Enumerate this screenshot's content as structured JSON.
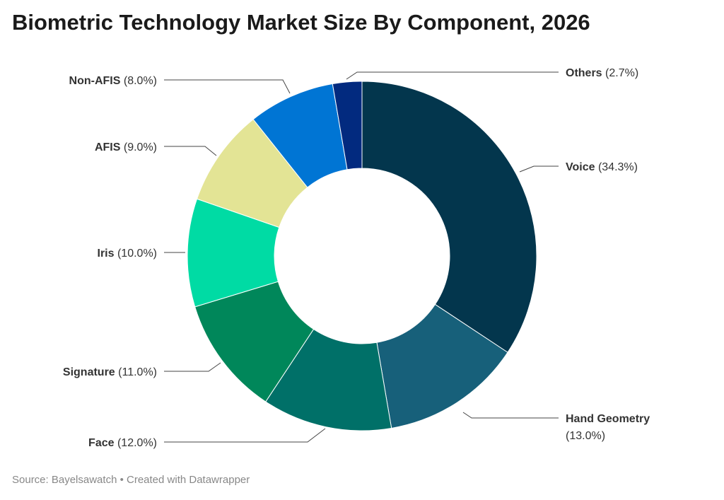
{
  "chart_data": {
    "type": "pie",
    "variant": "donut",
    "title": "Biometric Technology Market Size By Component, 2026",
    "unit": "%",
    "slices": [
      {
        "label": "Voice",
        "value": 34.3,
        "value_label": "(34.3%)",
        "color": "#03364d"
      },
      {
        "label": "Hand Geometry",
        "value": 13.0,
        "value_label": "(13.0%)",
        "color": "#17607a"
      },
      {
        "label": "Face",
        "value": 12.0,
        "value_label": "(12.0%)",
        "color": "#007068"
      },
      {
        "label": "Signature",
        "value": 11.0,
        "value_label": "(11.0%)",
        "color": "#00875a"
      },
      {
        "label": "Iris",
        "value": 10.0,
        "value_label": "(10.0%)",
        "color": "#00dba4"
      },
      {
        "label": "AFIS",
        "value": 9.0,
        "value_label": "(9.0%)",
        "color": "#e3e495"
      },
      {
        "label": "Non-AFIS",
        "value": 8.0,
        "value_label": "(8.0%)",
        "color": "#0075d4"
      },
      {
        "label": "Others",
        "value": 2.7,
        "value_label": "(2.7%)",
        "color": "#022a7f"
      }
    ],
    "legend": "none (direct labels with leader lines)"
  },
  "footer": {
    "source": "Source: Bayelsawatch • Created with Datawrapper"
  }
}
